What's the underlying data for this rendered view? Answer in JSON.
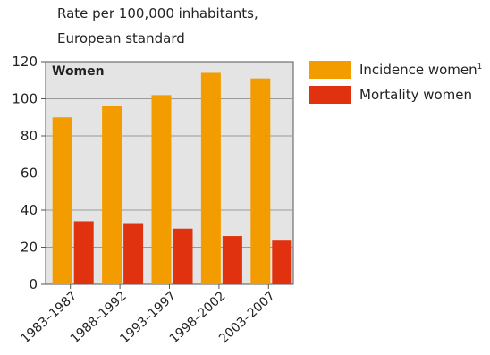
{
  "chart_data": {
    "type": "bar",
    "ylabel": "Rate per 100,000 inhabitants,\nEuropean standard",
    "panel_label": "Women",
    "categories": [
      "1983–1987",
      "1988–1992",
      "1993–1997",
      "1998–2002",
      "2003–2007"
    ],
    "series": [
      {
        "name": "Incidence women",
        "footnote": "1",
        "color": "#F39C00",
        "values": [
          90,
          96,
          102,
          114,
          111
        ]
      },
      {
        "name": "Mortality women",
        "color": "#E1320F",
        "values": [
          34,
          33,
          30,
          26,
          24
        ]
      }
    ],
    "ylim": [
      0,
      120
    ],
    "yticks": [
      0,
      20,
      40,
      60,
      80,
      100,
      120
    ],
    "grid": true,
    "legend_position": "top-right",
    "plot_background": "#E4E4E4"
  }
}
